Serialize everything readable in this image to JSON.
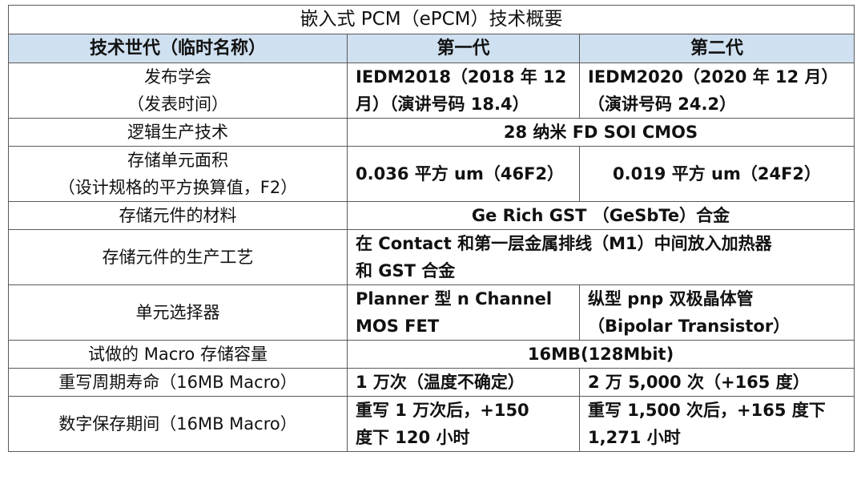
{
  "title": "嵌入式 PCM（ePCM）技术概要",
  "header": {
    "col1": "技术世代（临时名称）",
    "col2": "第一代",
    "col3": "第二代"
  },
  "rows": {
    "conference": {
      "label_line1": "发布学会",
      "label_line2": "（发表时间）",
      "gen1_line1": "IEDM2018（2018 年 12",
      "gen1_line2": "月）（演讲号码 18.4）",
      "gen2_line1": "IEDM2020（2020 年 12 月）",
      "gen2_line2": "（演讲号码 24.2）"
    },
    "logic": {
      "label": "逻辑生产技术",
      "value": "28 纳米 FD SOI CMOS"
    },
    "cell_area": {
      "label_line1": "存储单元面积",
      "label_line2": "（设计规格的平方换算值，F2）",
      "gen1": "0.036 平方 um（46F2）",
      "gen2": "0.019 平方 um（24F2）"
    },
    "material": {
      "label": "存储元件的材料",
      "value": "Ge Rich GST （GeSbTe）合金"
    },
    "process": {
      "label": "存储元件的生产工艺",
      "value_line1": "在 Contact 和第一层金属排线（M1）中间放入加热器",
      "value_line2": "和 GST 合金"
    },
    "selector": {
      "label": "单元选择器",
      "gen1_line1": "Planner 型 n Channel",
      "gen1_line2": "MOS FET",
      "gen2_line1": "纵型 pnp 双极晶体管",
      "gen2_line2": "（Bipolar Transistor）"
    },
    "macro": {
      "label": "试做的 Macro 存储容量",
      "value": "16MB(128Mbit)"
    },
    "endurance": {
      "label": "重写周期寿命（16MB Macro）",
      "gen1": "1 万次（温度不确定）",
      "gen2": "2 万 5,000 次（+165 度）"
    },
    "retention": {
      "label": "数字保存期间（16MB Macro）",
      "gen1_line1": "重写 1 万次后，+150",
      "gen1_line2": "度下 120 小时",
      "gen2_line1": "重写 1,500 次后，+165 度下",
      "gen2_line2": "1,271 小时"
    }
  }
}
